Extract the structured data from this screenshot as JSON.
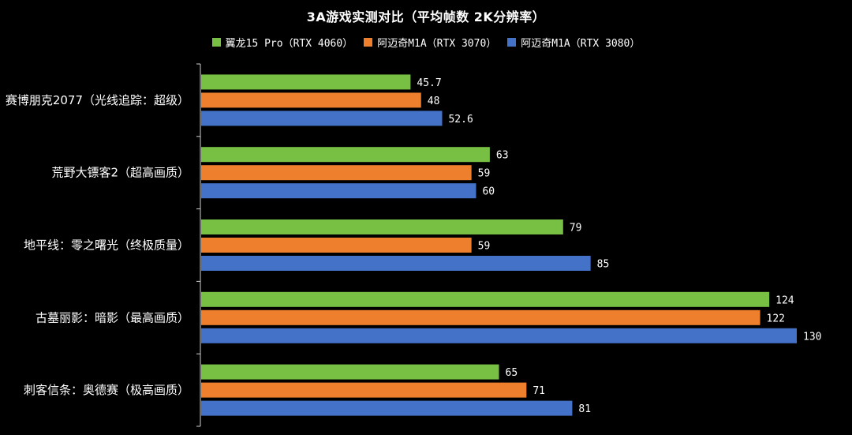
{
  "chart_data": {
    "type": "bar",
    "orientation": "horizontal",
    "title": "3A游戏实测对比（平均帧数 2K分辨率）",
    "categories": [
      "赛博朋克2077（光线追踪：超级）",
      "荒野大镖客2（超高画质）",
      "地平线：零之曙光（终极质量）",
      "古墓丽影：暗影（最高画质）",
      "刺客信条：奥德赛（极高画质）"
    ],
    "series": [
      {
        "name": "翼龙15 Pro（RTX 4060）",
        "color": "#77c043",
        "values": [
          45.7,
          63,
          79,
          124,
          65
        ]
      },
      {
        "name": "阿迈奇M1A（RTX 3070）",
        "color": "#ee7f2d",
        "values": [
          48,
          59,
          59,
          122,
          71
        ]
      },
      {
        "name": "阿迈奇M1A（RTX 3080）",
        "color": "#4472c9",
        "values": [
          52.6,
          60,
          85,
          130,
          81
        ]
      }
    ],
    "value_labels": [
      [
        "45.7",
        "63",
        "79",
        "124",
        "65"
      ],
      [
        "48",
        "59",
        "59",
        "122",
        "71"
      ],
      [
        "52.6",
        "60",
        "85",
        "130",
        "81"
      ]
    ],
    "xlim": [
      0,
      130
    ],
    "grid": false,
    "legend_position": "top"
  }
}
